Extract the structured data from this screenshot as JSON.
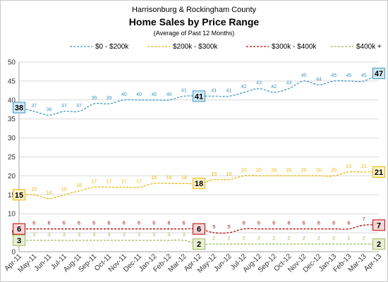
{
  "chart_data": {
    "type": "line",
    "title_line1": "Harrisonburg & Rockingham County",
    "title_line2": "Home Sales by Price Range",
    "title_line3": "(Average of Past 12 Months)",
    "categories": [
      "Apr-11",
      "May-11",
      "Jun-11",
      "Jul-11",
      "Aug-11",
      "Sep-11",
      "Oct-11",
      "Nov-11",
      "Dec-11",
      "Jan-12",
      "Feb-12",
      "Mar-12",
      "Apr-12",
      "May-12",
      "Jun-12",
      "Jul-12",
      "Aug-12",
      "Sep-12",
      "Oct-12",
      "Nov-12",
      "Dec-12",
      "Jan-13",
      "Feb-13",
      "Mar-13",
      "Apr-13"
    ],
    "ylim": [
      0,
      50
    ],
    "yticks": [
      0,
      5,
      10,
      15,
      20,
      25,
      30,
      35,
      40,
      45,
      50
    ],
    "grid": true,
    "legend_position": "top",
    "series": [
      {
        "name": "$0 - $200k",
        "color": "#3a97c4",
        "values": [
          38,
          37,
          36,
          37,
          37,
          39,
          39,
          40,
          40,
          40,
          40,
          41,
          41,
          41,
          41,
          42,
          43,
          42,
          43,
          45,
          44,
          45,
          45,
          45,
          47
        ]
      },
      {
        "name": "$200k - $300k",
        "color": "#f0b400",
        "values": [
          15,
          15,
          14,
          15,
          16,
          17,
          17,
          17,
          17,
          18,
          18,
          18,
          18,
          19,
          19,
          20,
          20,
          20,
          20,
          20,
          20,
          20,
          21,
          21,
          21
        ]
      },
      {
        "name": "$300k - $400k",
        "color": "#c00000",
        "values": [
          6,
          6,
          6,
          6,
          6,
          6,
          6,
          6,
          6,
          6,
          6,
          6,
          6,
          5,
          5,
          6,
          6,
          6,
          6,
          6,
          6,
          6,
          6,
          7,
          7
        ]
      },
      {
        "name": "$400k +",
        "color": "#9bbb59",
        "values": [
          3,
          3,
          3,
          3,
          3,
          3,
          3,
          3,
          3,
          3,
          3,
          3,
          2,
          2,
          2,
          2,
          2,
          2,
          2,
          2,
          2,
          2,
          2,
          2,
          2
        ]
      }
    ],
    "boxed_points": [
      {
        "series": 0,
        "index": 0,
        "fill": "#d3e9f3",
        "stroke": "#3a97c4"
      },
      {
        "series": 0,
        "index": 12,
        "fill": "#d3e9f3",
        "stroke": "#3a97c4"
      },
      {
        "series": 0,
        "index": 24,
        "fill": "#d3e9f3",
        "stroke": "#3a97c4"
      },
      {
        "series": 1,
        "index": 0,
        "fill": "#fdf1c8",
        "stroke": "#f0b400"
      },
      {
        "series": 1,
        "index": 12,
        "fill": "#fdf1c8",
        "stroke": "#f0b400"
      },
      {
        "series": 1,
        "index": 24,
        "fill": "#fdf1c8",
        "stroke": "#f0b400"
      },
      {
        "series": 2,
        "index": 0,
        "fill": "#f6d6d6",
        "stroke": "#c00000"
      },
      {
        "series": 2,
        "index": 12,
        "fill": "#f6d6d6",
        "stroke": "#c00000"
      },
      {
        "series": 2,
        "index": 24,
        "fill": "#f6d6d6",
        "stroke": "#c00000"
      },
      {
        "series": 3,
        "index": 0,
        "fill": "#e6efd2",
        "stroke": "#9bbb59"
      },
      {
        "series": 3,
        "index": 12,
        "fill": "#e6efd2",
        "stroke": "#9bbb59"
      },
      {
        "series": 3,
        "index": 24,
        "fill": "#e6efd2",
        "stroke": "#9bbb59"
      }
    ]
  }
}
